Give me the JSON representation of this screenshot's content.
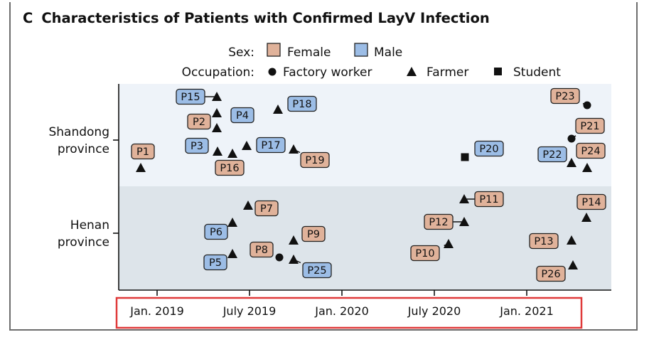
{
  "figure": {
    "panel_letter": "C",
    "title": "Characteristics of Patients with Confirmed LayV Infection"
  },
  "legend": {
    "sex_label": "Sex:",
    "female_label": "Female",
    "male_label": "Male",
    "occupation_label": "Occupation:",
    "factory_worker_label": "Factory worker",
    "farmer_label": "Farmer",
    "student_label": "Student"
  },
  "colors": {
    "female": "#e0b29a",
    "male": "#9cbde6",
    "shandong_band": "#eef3f9",
    "henan_band": "#dde4ea",
    "highlight_box": "#e03a3a"
  },
  "chart_data": {
    "type": "scatter",
    "title": "Characteristics of Patients with Confirmed LayV Infection",
    "xlabel": "",
    "ylabel": "",
    "x_unit": "months since Jan. 2019",
    "xlim": [
      -2.5,
      28.5
    ],
    "x_ticks": [
      0,
      6,
      12,
      18,
      24
    ],
    "x_tick_labels": [
      "Jan. 2019",
      "July 2019",
      "Jan. 2020",
      "July 2020",
      "Jan. 2021"
    ],
    "groups": [
      {
        "key": "shandong",
        "label": [
          "Shandong",
          "province"
        ]
      },
      {
        "key": "henan",
        "label": [
          "Henan",
          "province"
        ]
      }
    ],
    "occupations": [
      "Factory worker",
      "Farmer",
      "Student"
    ],
    "points": [
      {
        "id": "P1",
        "group": "shandong",
        "sex": "Female",
        "occupation": "Farmer",
        "x": -1.0
      },
      {
        "id": "P2",
        "group": "shandong",
        "sex": "Female",
        "occupation": "Farmer",
        "x": 4.0
      },
      {
        "id": "P3",
        "group": "shandong",
        "sex": "Male",
        "occupation": "Farmer",
        "x": 5.3
      },
      {
        "id": "P4",
        "group": "shandong",
        "sex": "Male",
        "occupation": "Farmer",
        "x": 4.0
      },
      {
        "id": "P5",
        "group": "henan",
        "sex": "Male",
        "occupation": "Farmer",
        "x": 5.0
      },
      {
        "id": "P6",
        "group": "henan",
        "sex": "Male",
        "occupation": "Farmer",
        "x": 5.0
      },
      {
        "id": "P7",
        "group": "henan",
        "sex": "Female",
        "occupation": "Farmer",
        "x": 6.0
      },
      {
        "id": "P8",
        "group": "henan",
        "sex": "Female",
        "occupation": "Factory worker",
        "x": 8.0
      },
      {
        "id": "P9",
        "group": "henan",
        "sex": "Female",
        "occupation": "Farmer",
        "x": 9.0
      },
      {
        "id": "P10",
        "group": "henan",
        "sex": "Female",
        "occupation": "Farmer",
        "x": 19.0
      },
      {
        "id": "P11",
        "group": "henan",
        "sex": "Female",
        "occupation": "Farmer",
        "x": 21.0
      },
      {
        "id": "P12",
        "group": "henan",
        "sex": "Female",
        "occupation": "Farmer",
        "x": 21.0
      },
      {
        "id": "P13",
        "group": "henan",
        "sex": "Female",
        "occupation": "Farmer",
        "x": 27.0
      },
      {
        "id": "P14",
        "group": "henan",
        "sex": "Female",
        "occupation": "Farmer",
        "x": 28.0
      },
      {
        "id": "P15",
        "group": "shandong",
        "sex": "Male",
        "occupation": "Farmer",
        "x": 4.0
      },
      {
        "id": "P16",
        "group": "shandong",
        "sex": "Female",
        "occupation": "Farmer",
        "x": 5.0
      },
      {
        "id": "P17",
        "group": "shandong",
        "sex": "Male",
        "occupation": "Farmer",
        "x": 6.0
      },
      {
        "id": "P18",
        "group": "shandong",
        "sex": "Male",
        "occupation": "Farmer",
        "x": 8.0
      },
      {
        "id": "P19",
        "group": "shandong",
        "sex": "Female",
        "occupation": "Farmer",
        "x": 9.0
      },
      {
        "id": "P20",
        "group": "shandong",
        "sex": "Male",
        "occupation": "Student",
        "x": 20.8
      },
      {
        "id": "P21",
        "group": "shandong",
        "sex": "Female",
        "occupation": "Factory worker",
        "x": 27.0
      },
      {
        "id": "P22",
        "group": "shandong",
        "sex": "Male",
        "occupation": "Farmer",
        "x": 27.0
      },
      {
        "id": "P23",
        "group": "shandong",
        "sex": "Female",
        "occupation": "Factory worker",
        "x": 28.0
      },
      {
        "id": "P24",
        "group": "shandong",
        "sex": "Female",
        "occupation": "Farmer",
        "x": 28.0
      },
      {
        "id": "P25",
        "group": "henan",
        "sex": "Male",
        "occupation": "Farmer",
        "x": 9.0
      },
      {
        "id": "P26",
        "group": "henan",
        "sex": "Female",
        "occupation": "Farmer",
        "x": 27.0
      }
    ]
  }
}
